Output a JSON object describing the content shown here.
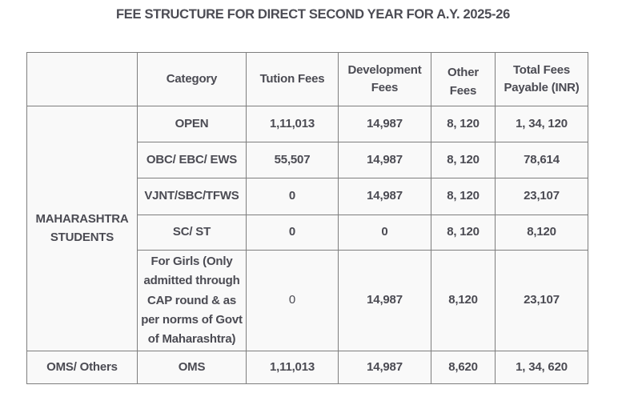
{
  "title": "FEE STRUCTURE FOR DIRECT SECOND YEAR FOR A.Y. 2025-26",
  "colors": {
    "text": "#4b4b53",
    "border": "#7e7e7e",
    "cell_background": "#f9f9f9",
    "page_background": "#ffffff"
  },
  "table": {
    "headers": {
      "group": "",
      "category": "Category",
      "tution": "Tution Fees",
      "development": "Development Fees",
      "other": "Other Fees",
      "total": "Total Fees Payable (INR)"
    },
    "groups": [
      {
        "label": "MAHARASHTRA STUDENTS",
        "rows": [
          [
            "OPEN",
            "1,11,013",
            "14,987",
            "8, 120",
            "1, 34, 120"
          ],
          [
            "OBC/ EBC/ EWS",
            "55,507",
            "14,987",
            "8, 120",
            "78,614"
          ],
          [
            "VJNT/SBC/TFWS",
            "0",
            "14,987",
            "8, 120",
            "23,107"
          ],
          [
            "SC/ ST",
            "0",
            "0",
            "8, 120",
            "8,120"
          ],
          [
            "For Girls (Only admitted through CAP round & as per norms of Govt of Maharashtra)",
            "0",
            "14,987",
            "8,120",
            "23,107"
          ]
        ]
      },
      {
        "label": "OMS/ Others",
        "rows": [
          [
            "OMS",
            "1,11,013",
            "14,987",
            "8,620",
            "1, 34, 620"
          ]
        ]
      }
    ]
  }
}
